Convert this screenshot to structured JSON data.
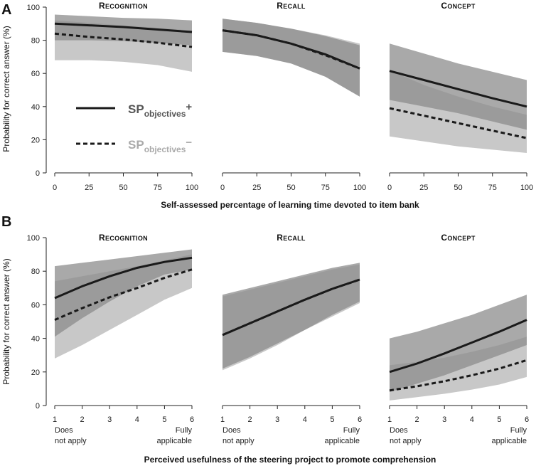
{
  "colors": {
    "plus_band": "#8c8c8c",
    "minus_band": "#c8c8c8",
    "overlap_band": "#6e6e6e",
    "plus_line": "#1a1a1a",
    "minus_line": "#1a1a1a",
    "legend_plus_text": "#555555",
    "legend_minus_text": "#aaaaaa"
  },
  "chart_data": [
    {
      "panel": "A",
      "type": "line",
      "xlabel": "Self-assessed percentage of learning time devoted to item bank",
      "ylabel": "Probability for correct answer (%)",
      "ylim": [
        0,
        100
      ],
      "yticks": [
        0,
        20,
        40,
        60,
        80,
        100
      ],
      "xlim": [
        0,
        100
      ],
      "xticks": [
        0,
        25,
        50,
        75,
        100
      ],
      "legend": {
        "plus_label": "SP",
        "plus_sub": "objectives",
        "plus_sup": "+",
        "minus_label": "SP",
        "minus_sub": "objectives",
        "minus_sup": "−"
      },
      "subplots": [
        {
          "title": "Recognition",
          "x": [
            0,
            25,
            50,
            75,
            100
          ],
          "series": [
            {
              "name": "SPobjectives+",
              "style": "solid",
              "values": [
                90,
                89,
                88,
                86.5,
                85
              ],
              "lower": [
                80,
                80,
                79.5,
                78.5,
                77
              ],
              "upper": [
                95.5,
                94.5,
                93.5,
                93,
                92
              ]
            },
            {
              "name": "SPobjectives−",
              "style": "dashed",
              "values": [
                84,
                82,
                80.5,
                78.5,
                76
              ],
              "lower": [
                68,
                68,
                67,
                65,
                61
              ],
              "upper": [
                92,
                90.5,
                89,
                87.5,
                86
              ]
            }
          ]
        },
        {
          "title": "Recall",
          "x": [
            0,
            25,
            50,
            75,
            100
          ],
          "series": [
            {
              "name": "SPobjectives+",
              "style": "solid",
              "values": [
                86,
                83,
                78,
                71.5,
                63
              ],
              "lower": [
                73,
                70.5,
                66,
                58,
                46
              ],
              "upper": [
                93,
                90.5,
                87,
                82.5,
                77
              ]
            },
            {
              "name": "SPobjectives−",
              "style": "dashed",
              "values": [
                86,
                83,
                78,
                71,
                63
              ],
              "lower": [
                73,
                70.5,
                66,
                58,
                46
              ],
              "upper": [
                93,
                90.5,
                87,
                83,
                78
              ]
            }
          ]
        },
        {
          "title": "Concept",
          "x": [
            0,
            25,
            50,
            75,
            100
          ],
          "series": [
            {
              "name": "SPobjectives+",
              "style": "solid",
              "values": [
                61.5,
                56,
                50.5,
                45,
                40
              ],
              "lower": [
                44,
                40,
                36,
                31,
                26
              ],
              "upper": [
                78,
                72,
                66,
                61,
                56
              ]
            },
            {
              "name": "SPobjectives−",
              "style": "dashed",
              "values": [
                39,
                34.5,
                30,
                25.5,
                21
              ],
              "lower": [
                22,
                19,
                16,
                14,
                12
              ],
              "upper": [
                62,
                53,
                46,
                40,
                35
              ]
            }
          ]
        }
      ]
    },
    {
      "panel": "B",
      "type": "line",
      "xlabel": "Perceived usefulness of the steering project to promote comprehension",
      "ylabel": "Probability for correct answer (%)",
      "ylim": [
        0,
        100
      ],
      "yticks": [
        0,
        20,
        40,
        60,
        80,
        100
      ],
      "xlim": [
        1,
        6
      ],
      "xticks": [
        1,
        2,
        3,
        4,
        5,
        6
      ],
      "x_end_labels": {
        "low_1": "Does",
        "low_2": "not apply",
        "high_1": "Fully",
        "high_2": "applicable"
      },
      "subplots": [
        {
          "title": "Recognition",
          "x": [
            1,
            2,
            3,
            4,
            5,
            6
          ],
          "series": [
            {
              "name": "SPobjectives+",
              "style": "solid",
              "values": [
                64,
                71,
                77,
                82,
                85.5,
                88
              ],
              "lower": [
                41,
                52,
                62,
                71,
                78,
                81
              ],
              "upper": [
                83,
                85,
                87,
                89,
                91,
                93
              ]
            },
            {
              "name": "SPobjectives−",
              "style": "dashed",
              "values": [
                51,
                58,
                64.5,
                70,
                76,
                81
              ],
              "lower": [
                28,
                36,
                45,
                54,
                63,
                70
              ],
              "upper": [
                74,
                77,
                80,
                83,
                86.5,
                90
              ]
            }
          ]
        },
        {
          "title": "Recall",
          "x": [
            1,
            2,
            3,
            4,
            5,
            6
          ],
          "series": [
            {
              "name": "SPobjectives+",
              "style": "solid",
              "values": [
                42,
                49,
                56,
                63,
                69.5,
                75
              ],
              "lower": [
                22,
                29,
                37,
                45,
                54,
                62
              ],
              "upper": [
                66,
                70,
                74,
                78,
                82,
                85
              ]
            },
            {
              "name": "SPobjectives−",
              "style": "dashed",
              "values": [
                42,
                49,
                56,
                63,
                69.5,
                75
              ],
              "lower": [
                21,
                28,
                36,
                45,
                53,
                61
              ],
              "upper": [
                65,
                69,
                73,
                77,
                81,
                84
              ]
            }
          ]
        },
        {
          "title": "Concept",
          "x": [
            1,
            2,
            3,
            4,
            5,
            6
          ],
          "series": [
            {
              "name": "SPobjectives+",
              "style": "solid",
              "values": [
                20,
                25,
                31,
                37.5,
                44,
                51
              ],
              "lower": [
                8,
                13,
                18,
                24,
                30,
                36
              ],
              "upper": [
                40,
                44,
                49,
                54,
                60,
                66
              ]
            },
            {
              "name": "SPobjectives−",
              "style": "dashed",
              "values": [
                9,
                11.5,
                14.5,
                18,
                22,
                27
              ],
              "lower": [
                3,
                5,
                7,
                9.5,
                12.5,
                17
              ],
              "upper": [
                24,
                26,
                28.5,
                32,
                36,
                41
              ]
            }
          ]
        }
      ]
    }
  ]
}
